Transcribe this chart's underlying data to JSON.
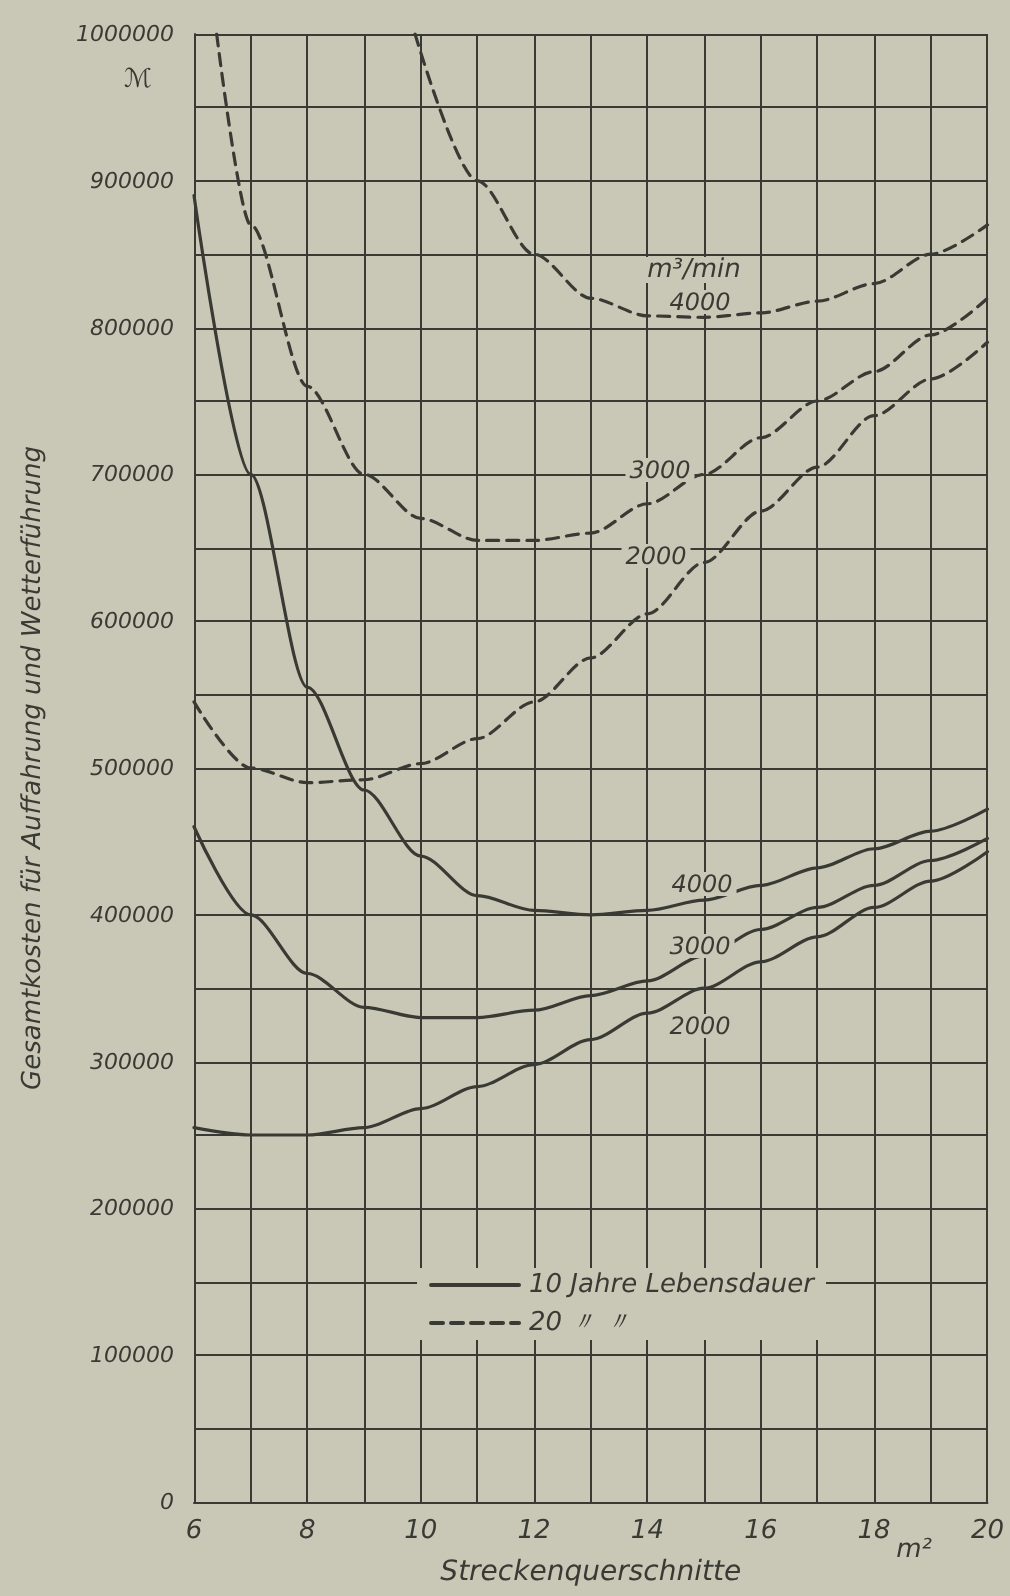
{
  "chart_data": {
    "type": "line",
    "xlabel": "Streckenquerschnitte",
    "ylabel": "Gesamtkosten für Auffahrung und Wetterführung",
    "xlim": [
      6,
      20
    ],
    "ylim": [
      0,
      1000000
    ],
    "xticks": [
      6,
      {
        "value": 7,
        "label": null
      },
      8,
      {
        "value": 9,
        "label": null
      },
      10,
      {
        "value": 11,
        "label": null
      },
      12,
      {
        "value": 13,
        "label": null
      },
      14,
      {
        "value": 15,
        "label": null
      },
      16,
      {
        "value": 17,
        "label": null
      },
      18,
      {
        "value": 19,
        "label": null
      },
      20
    ],
    "yticks": [
      0,
      {
        "value": 50000,
        "label": null
      },
      100000,
      {
        "value": 150000,
        "label": null
      },
      200000,
      {
        "value": 250000,
        "label": null
      },
      300000,
      {
        "value": 350000,
        "label": null
      },
      400000,
      {
        "value": 450000,
        "label": null
      },
      500000,
      {
        "value": 550000,
        "label": null
      },
      600000,
      {
        "value": 650000,
        "label": null
      },
      700000,
      {
        "value": 750000,
        "label": null
      },
      800000,
      {
        "value": 850000,
        "label": null
      },
      900000,
      {
        "value": 950000,
        "label": null
      },
      1000000
    ],
    "grid": true,
    "legend": "bottom right",
    "marker": "none",
    "series": [
      {
        "name": "10 Jahre Lebensdauer",
        "color": "#3a3a34",
        "line_style": "solid",
        "x": [
          6,
          7,
          8,
          9,
          10,
          11,
          12,
          13,
          14,
          15,
          16,
          17,
          18,
          19,
          20
        ],
        "values": [
          255000,
          250000,
          250000,
          255000,
          268000,
          283000,
          298000,
          315000,
          333000,
          350000,
          368000,
          385000,
          405000,
          423000,
          443000
        ]
      },
      {
        "color": "#3a3a34",
        "line_style": "solid",
        "x": [
          6,
          7,
          8,
          9,
          10,
          11,
          12,
          13,
          14,
          15,
          16,
          17,
          18,
          19,
          20
        ],
        "values": [
          460000,
          400000,
          360000,
          337000,
          330000,
          330000,
          335000,
          345000,
          355000,
          372000,
          390000,
          405000,
          420000,
          437000,
          452000
        ]
      },
      {
        "color": "#3a3a34",
        "line_style": "solid",
        "x": [
          6,
          7,
          8,
          9,
          10,
          11,
          12,
          13,
          14,
          15,
          16,
          17,
          18,
          19,
          20
        ],
        "values": [
          890000,
          700000,
          555000,
          485000,
          440000,
          413000,
          403000,
          400000,
          403000,
          410000,
          420000,
          432000,
          445000,
          457000,
          472000
        ]
      },
      {
        "name": "20 〃 〃",
        "color": "#3a3a34",
        "line_style": "dashed",
        "x": [
          6,
          7,
          8,
          9,
          10,
          11,
          12,
          13,
          14,
          15,
          16,
          17,
          18,
          19,
          20
        ],
        "values": [
          545000,
          500000,
          490000,
          492000,
          503000,
          520000,
          545000,
          575000,
          605000,
          640000,
          675000,
          705000,
          740000,
          765000,
          790000
        ]
      },
      {
        "color": "#3a3a34",
        "line_style": "dashed",
        "x": [
          6.4,
          7,
          8,
          9,
          10,
          11,
          12,
          13,
          14,
          15,
          16,
          17,
          18,
          19,
          20
        ],
        "values": [
          1000000,
          870000,
          760000,
          700000,
          670000,
          655000,
          655000,
          660000,
          680000,
          700000,
          725000,
          750000,
          770000,
          795000,
          820000
        ]
      },
      {
        "color": "#3a3a34",
        "line_style": "dashed",
        "x": [
          9.9,
          11,
          12,
          13,
          14,
          15,
          16,
          17,
          18,
          19,
          20
        ],
        "values": [
          1000000,
          900000,
          850000,
          820000,
          808000,
          807000,
          810000,
          818000,
          830000,
          850000,
          870000
        ]
      }
    ],
    "annotations": [
      "ℳ",
      "m²",
      "m³/min",
      "4000",
      "3000",
      "2000",
      "4000",
      "3000",
      "2000"
    ]
  }
}
